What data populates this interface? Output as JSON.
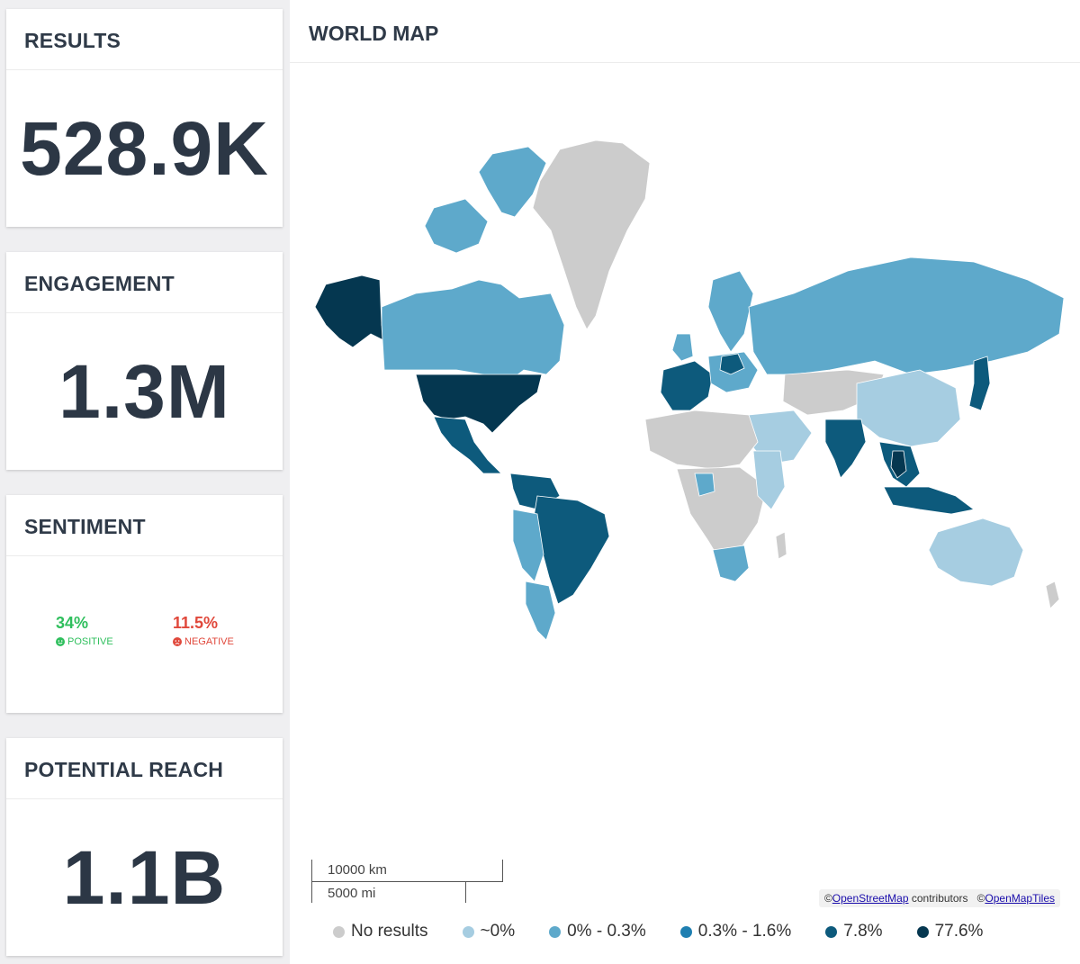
{
  "cards": {
    "results": {
      "title": "RESULTS",
      "value": "528.9K"
    },
    "engagement": {
      "title": "ENGAGEMENT",
      "value": "1.3M"
    },
    "sentiment": {
      "title": "SENTIMENT",
      "positive": {
        "value": "34%",
        "label": "POSITIVE"
      },
      "negative": {
        "value": "11.5%",
        "label": "NEGATIVE"
      }
    },
    "reach": {
      "title": "POTENTIAL REACH",
      "value": "1.1B"
    }
  },
  "map": {
    "title": "WORLD MAP",
    "scale": {
      "km": "10000 km",
      "mi": "5000 mi"
    },
    "attribution": {
      "osm_prefix": "©",
      "osm_link": "OpenStreetMap",
      "osm_suffix": " contributors",
      "tiles_prefix": "©",
      "tiles_link": "OpenMapTiles"
    },
    "colors": {
      "none": "#cccccc",
      "tier1": "#a6cde1",
      "tier2": "#5ea9cb",
      "tier3": "#1f7fb1",
      "tier4": "#0d5a7c",
      "tier5": "#053750"
    },
    "legend": [
      {
        "label": "No results",
        "color": "#cccccc"
      },
      {
        "label": "~0%",
        "color": "#a6cde1"
      },
      {
        "label": "0% - 0.3%",
        "color": "#5ea9cb"
      },
      {
        "label": "0.3% - 1.6%",
        "color": "#1f7fb1"
      },
      {
        "label": "7.8%",
        "color": "#0d5a7c"
      },
      {
        "label": "77.6%",
        "color": "#053750"
      }
    ]
  }
}
